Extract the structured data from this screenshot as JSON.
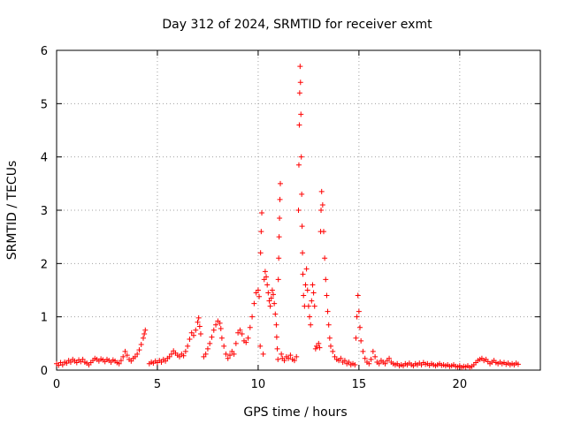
{
  "chart_data": {
    "type": "scatter",
    "title": "Day 312 of 2024, SRMTID for receiver exmt",
    "xlabel": "GPS time / hours",
    "ylabel": "SRMTID / TECUs",
    "xlim": [
      0,
      24
    ],
    "ylim": [
      0,
      6
    ],
    "xticks": [
      0,
      5,
      10,
      15,
      20
    ],
    "yticks": [
      0,
      1,
      2,
      3,
      4,
      5,
      6
    ],
    "grid": true,
    "marker": "+",
    "marker_color": "#ff0000",
    "series": [
      {
        "name": "SRMTID",
        "points": [
          [
            0.0,
            0.12
          ],
          [
            0.1,
            0.09
          ],
          [
            0.2,
            0.14
          ],
          [
            0.3,
            0.1
          ],
          [
            0.4,
            0.15
          ],
          [
            0.5,
            0.13
          ],
          [
            0.6,
            0.18
          ],
          [
            0.7,
            0.15
          ],
          [
            0.8,
            0.2
          ],
          [
            0.9,
            0.17
          ],
          [
            1.0,
            0.14
          ],
          [
            1.1,
            0.19
          ],
          [
            1.2,
            0.16
          ],
          [
            1.3,
            0.2
          ],
          [
            1.4,
            0.15
          ],
          [
            1.5,
            0.13
          ],
          [
            1.6,
            0.1
          ],
          [
            1.7,
            0.14
          ],
          [
            1.8,
            0.18
          ],
          [
            1.9,
            0.22
          ],
          [
            2.0,
            0.2
          ],
          [
            2.1,
            0.17
          ],
          [
            2.2,
            0.21
          ],
          [
            2.3,
            0.19
          ],
          [
            2.4,
            0.16
          ],
          [
            2.5,
            0.2
          ],
          [
            2.6,
            0.18
          ],
          [
            2.7,
            0.15
          ],
          [
            2.8,
            0.19
          ],
          [
            2.9,
            0.17
          ],
          [
            3.0,
            0.14
          ],
          [
            3.1,
            0.12
          ],
          [
            3.2,
            0.18
          ],
          [
            3.3,
            0.25
          ],
          [
            3.4,
            0.35
          ],
          [
            3.5,
            0.28
          ],
          [
            3.6,
            0.2
          ],
          [
            3.7,
            0.17
          ],
          [
            3.8,
            0.22
          ],
          [
            3.9,
            0.25
          ],
          [
            4.0,
            0.3
          ],
          [
            4.1,
            0.38
          ],
          [
            4.2,
            0.48
          ],
          [
            4.3,
            0.6
          ],
          [
            4.35,
            0.68
          ],
          [
            4.4,
            0.75
          ],
          [
            4.6,
            0.12
          ],
          [
            4.7,
            0.15
          ],
          [
            4.8,
            0.13
          ],
          [
            4.9,
            0.17
          ],
          [
            5.0,
            0.14
          ],
          [
            5.1,
            0.18
          ],
          [
            5.2,
            0.15
          ],
          [
            5.3,
            0.2
          ],
          [
            5.4,
            0.17
          ],
          [
            5.5,
            0.22
          ],
          [
            5.6,
            0.25
          ],
          [
            5.7,
            0.3
          ],
          [
            5.8,
            0.36
          ],
          [
            5.9,
            0.32
          ],
          [
            6.0,
            0.28
          ],
          [
            6.1,
            0.25
          ],
          [
            6.2,
            0.3
          ],
          [
            6.3,
            0.27
          ],
          [
            6.4,
            0.35
          ],
          [
            6.5,
            0.45
          ],
          [
            6.6,
            0.58
          ],
          [
            6.7,
            0.7
          ],
          [
            6.8,
            0.65
          ],
          [
            6.9,
            0.75
          ],
          [
            7.0,
            0.9
          ],
          [
            7.05,
            0.98
          ],
          [
            7.1,
            0.82
          ],
          [
            7.15,
            0.68
          ],
          [
            7.3,
            0.25
          ],
          [
            7.4,
            0.3
          ],
          [
            7.5,
            0.4
          ],
          [
            7.6,
            0.5
          ],
          [
            7.7,
            0.62
          ],
          [
            7.8,
            0.75
          ],
          [
            7.9,
            0.85
          ],
          [
            8.0,
            0.92
          ],
          [
            8.1,
            0.88
          ],
          [
            8.15,
            0.78
          ],
          [
            8.2,
            0.6
          ],
          [
            8.3,
            0.45
          ],
          [
            8.4,
            0.3
          ],
          [
            8.5,
            0.22
          ],
          [
            8.6,
            0.28
          ],
          [
            8.7,
            0.35
          ],
          [
            8.8,
            0.3
          ],
          [
            8.9,
            0.5
          ],
          [
            9.0,
            0.7
          ],
          [
            9.1,
            0.75
          ],
          [
            9.2,
            0.68
          ],
          [
            9.3,
            0.55
          ],
          [
            9.4,
            0.52
          ],
          [
            9.5,
            0.6
          ],
          [
            9.6,
            0.8
          ],
          [
            9.7,
            1.0
          ],
          [
            9.8,
            1.25
          ],
          [
            9.9,
            1.45
          ],
          [
            10.0,
            1.5
          ],
          [
            10.05,
            1.38
          ],
          [
            10.1,
            0.45
          ],
          [
            10.12,
            2.2
          ],
          [
            10.15,
            2.6
          ],
          [
            10.18,
            2.95
          ],
          [
            10.25,
            0.3
          ],
          [
            10.3,
            1.7
          ],
          [
            10.35,
            1.85
          ],
          [
            10.4,
            1.75
          ],
          [
            10.45,
            1.6
          ],
          [
            10.5,
            1.45
          ],
          [
            10.55,
            1.3
          ],
          [
            10.6,
            1.2
          ],
          [
            10.65,
            1.35
          ],
          [
            10.7,
            1.5
          ],
          [
            10.75,
            1.42
          ],
          [
            10.8,
            1.25
          ],
          [
            10.85,
            1.05
          ],
          [
            10.9,
            0.85
          ],
          [
            10.92,
            0.62
          ],
          [
            10.95,
            0.4
          ],
          [
            10.98,
            0.2
          ],
          [
            11.0,
            1.7
          ],
          [
            11.02,
            2.1
          ],
          [
            11.04,
            2.5
          ],
          [
            11.06,
            2.85
          ],
          [
            11.08,
            3.2
          ],
          [
            11.1,
            3.5
          ],
          [
            11.15,
            0.3
          ],
          [
            11.2,
            0.22
          ],
          [
            11.3,
            0.18
          ],
          [
            11.4,
            0.25
          ],
          [
            11.5,
            0.22
          ],
          [
            11.6,
            0.28
          ],
          [
            11.7,
            0.2
          ],
          [
            11.8,
            0.18
          ],
          [
            11.9,
            0.25
          ],
          [
            12.0,
            3.0
          ],
          [
            12.02,
            3.85
          ],
          [
            12.04,
            4.6
          ],
          [
            12.06,
            5.2
          ],
          [
            12.08,
            5.7
          ],
          [
            12.1,
            5.4
          ],
          [
            12.12,
            4.8
          ],
          [
            12.14,
            4.0
          ],
          [
            12.16,
            3.3
          ],
          [
            12.18,
            2.7
          ],
          [
            12.2,
            2.2
          ],
          [
            12.22,
            1.8
          ],
          [
            12.25,
            1.4
          ],
          [
            12.3,
            1.2
          ],
          [
            12.35,
            1.6
          ],
          [
            12.4,
            1.9
          ],
          [
            12.45,
            1.5
          ],
          [
            12.5,
            1.2
          ],
          [
            12.55,
            1.0
          ],
          [
            12.6,
            0.85
          ],
          [
            12.65,
            1.3
          ],
          [
            12.7,
            1.6
          ],
          [
            12.75,
            1.45
          ],
          [
            12.8,
            1.2
          ],
          [
            12.85,
            0.4
          ],
          [
            12.9,
            0.45
          ],
          [
            13.0,
            0.5
          ],
          [
            13.05,
            0.42
          ],
          [
            13.1,
            2.6
          ],
          [
            13.12,
            3.0
          ],
          [
            13.15,
            3.35
          ],
          [
            13.2,
            3.1
          ],
          [
            13.25,
            2.6
          ],
          [
            13.3,
            2.1
          ],
          [
            13.35,
            1.7
          ],
          [
            13.4,
            1.4
          ],
          [
            13.45,
            1.1
          ],
          [
            13.5,
            0.85
          ],
          [
            13.55,
            0.6
          ],
          [
            13.6,
            0.45
          ],
          [
            13.7,
            0.35
          ],
          [
            13.8,
            0.25
          ],
          [
            13.9,
            0.2
          ],
          [
            14.0,
            0.18
          ],
          [
            14.1,
            0.22
          ],
          [
            14.2,
            0.15
          ],
          [
            14.3,
            0.18
          ],
          [
            14.4,
            0.12
          ],
          [
            14.5,
            0.15
          ],
          [
            14.6,
            0.1
          ],
          [
            14.7,
            0.12
          ],
          [
            14.8,
            0.1
          ],
          [
            14.85,
            0.6
          ],
          [
            14.9,
            1.0
          ],
          [
            14.95,
            1.4
          ],
          [
            15.0,
            1.1
          ],
          [
            15.05,
            0.8
          ],
          [
            15.1,
            0.55
          ],
          [
            15.2,
            0.35
          ],
          [
            15.3,
            0.22
          ],
          [
            15.4,
            0.15
          ],
          [
            15.5,
            0.12
          ],
          [
            15.6,
            0.2
          ],
          [
            15.7,
            0.35
          ],
          [
            15.8,
            0.25
          ],
          [
            15.9,
            0.15
          ],
          [
            16.0,
            0.12
          ],
          [
            16.1,
            0.18
          ],
          [
            16.2,
            0.15
          ],
          [
            16.3,
            0.12
          ],
          [
            16.4,
            0.18
          ],
          [
            16.5,
            0.22
          ],
          [
            16.6,
            0.15
          ],
          [
            16.7,
            0.12
          ],
          [
            16.8,
            0.1
          ],
          [
            16.9,
            0.12
          ],
          [
            17.0,
            0.08
          ],
          [
            17.1,
            0.1
          ],
          [
            17.2,
            0.08
          ],
          [
            17.3,
            0.12
          ],
          [
            17.4,
            0.1
          ],
          [
            17.5,
            0.13
          ],
          [
            17.6,
            0.1
          ],
          [
            17.7,
            0.08
          ],
          [
            17.8,
            0.12
          ],
          [
            17.9,
            0.1
          ],
          [
            18.0,
            0.13
          ],
          [
            18.1,
            0.1
          ],
          [
            18.2,
            0.14
          ],
          [
            18.3,
            0.11
          ],
          [
            18.4,
            0.12
          ],
          [
            18.5,
            0.09
          ],
          [
            18.6,
            0.12
          ],
          [
            18.7,
            0.1
          ],
          [
            18.8,
            0.08
          ],
          [
            18.9,
            0.1
          ],
          [
            19.0,
            0.12
          ],
          [
            19.1,
            0.09
          ],
          [
            19.2,
            0.1
          ],
          [
            19.3,
            0.08
          ],
          [
            19.4,
            0.1
          ],
          [
            19.5,
            0.07
          ],
          [
            19.6,
            0.08
          ],
          [
            19.7,
            0.1
          ],
          [
            19.8,
            0.07
          ],
          [
            19.9,
            0.06
          ],
          [
            20.0,
            0.08
          ],
          [
            20.1,
            0.05
          ],
          [
            20.2,
            0.07
          ],
          [
            20.3,
            0.06
          ],
          [
            20.4,
            0.08
          ],
          [
            20.5,
            0.05
          ],
          [
            20.6,
            0.07
          ],
          [
            20.7,
            0.1
          ],
          [
            20.8,
            0.14
          ],
          [
            20.9,
            0.18
          ],
          [
            21.0,
            0.2
          ],
          [
            21.1,
            0.22
          ],
          [
            21.2,
            0.18
          ],
          [
            21.3,
            0.2
          ],
          [
            21.4,
            0.16
          ],
          [
            21.5,
            0.12
          ],
          [
            21.6,
            0.15
          ],
          [
            21.7,
            0.18
          ],
          [
            21.8,
            0.14
          ],
          [
            21.9,
            0.12
          ],
          [
            22.0,
            0.15
          ],
          [
            22.1,
            0.12
          ],
          [
            22.2,
            0.14
          ],
          [
            22.3,
            0.11
          ],
          [
            22.4,
            0.13
          ],
          [
            22.5,
            0.1
          ],
          [
            22.6,
            0.12
          ],
          [
            22.7,
            0.1
          ],
          [
            22.8,
            0.13
          ],
          [
            22.9,
            0.11
          ]
        ]
      }
    ]
  }
}
